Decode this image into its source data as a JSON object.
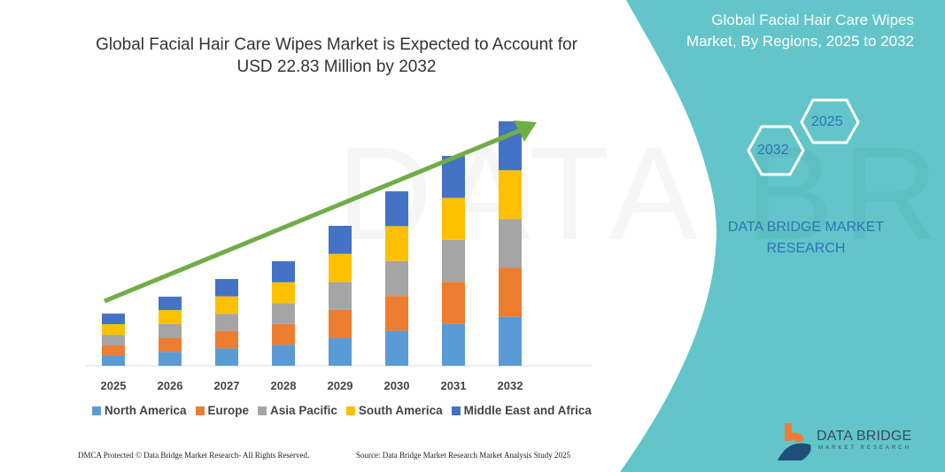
{
  "header": {
    "title_line1": "Global Facial Hair Care Wipes Market is Expected to Account for",
    "title_line2": "USD 22.83 Million by 2032"
  },
  "side_panel": {
    "title_line1": "Global Facial Hair Care Wipes",
    "title_line2": "Market, By Regions, 2025 to 2032",
    "hex_start": "2025",
    "hex_end": "2032",
    "brand_line1": "DATA BRIDGE MARKET",
    "brand_line2": "RESEARCH",
    "logo_name": "DATA BRIDGE",
    "logo_sub": "MARKET RESEARCH",
    "panel_color": "#63C5C9"
  },
  "footer": {
    "left": "DMCA Protected © Data Bridge Market Research- All Rights Reserved.",
    "right": "Source: Data Bridge Market Research Market Analysis Study 2025"
  },
  "chart_data": {
    "type": "bar",
    "stacked": true,
    "title": "",
    "xlabel": "",
    "ylabel": "",
    "grid": false,
    "legend_position": "bottom",
    "trend_arrow_color": "#70AD47",
    "categories": [
      "2025",
      "2026",
      "2027",
      "2028",
      "2029",
      "2030",
      "2031",
      "2032"
    ],
    "series": [
      {
        "name": "North America",
        "color": "#5B9BD5",
        "values": [
          0.91,
          1.3,
          1.62,
          1.95,
          2.61,
          3.26,
          3.92,
          4.57
        ]
      },
      {
        "name": "Europe",
        "color": "#ED7D31",
        "values": [
          0.99,
          1.3,
          1.62,
          1.95,
          2.61,
          3.26,
          3.92,
          4.57
        ]
      },
      {
        "name": "Asia Pacific",
        "color": "#A5A5A5",
        "values": [
          0.99,
          1.3,
          1.62,
          1.95,
          2.61,
          3.26,
          3.92,
          4.56
        ]
      },
      {
        "name": "South America",
        "color": "#FFC000",
        "values": [
          0.99,
          1.3,
          1.62,
          1.95,
          2.62,
          3.26,
          3.92,
          4.56
        ]
      },
      {
        "name": "Middle East and Africa",
        "color": "#4472C4",
        "values": [
          0.99,
          1.25,
          1.62,
          1.96,
          2.62,
          3.25,
          3.92,
          4.57
        ]
      }
    ]
  }
}
